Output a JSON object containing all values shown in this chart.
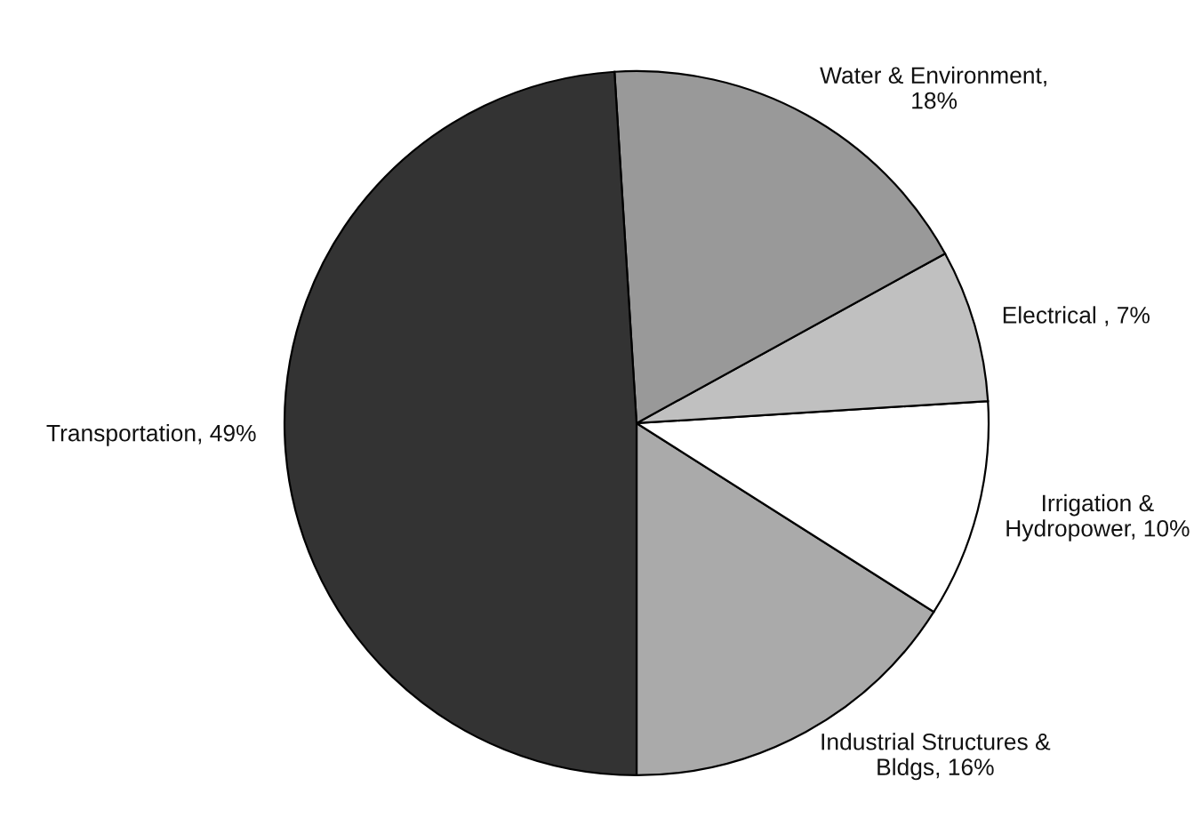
{
  "chart_data": {
    "type": "pie",
    "categories": [
      "Industrial Structures &\nBldgs, 16%",
      "Irrigation &\nHydropower, 10%",
      "Electrical , 7%",
      "Water & Environment,\n18%",
      "Transportation, 49%"
    ],
    "values": [
      16,
      10,
      7,
      18,
      49
    ],
    "colors": [
      "#aaaaaa",
      "#ffffff",
      "#c0c0c0",
      "#999999",
      "#333333"
    ]
  }
}
